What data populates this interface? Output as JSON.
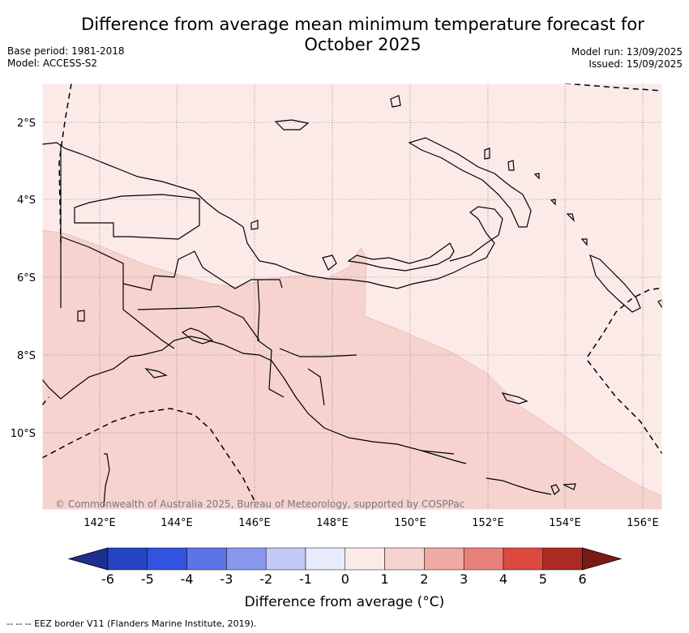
{
  "header": {
    "title_line1": "Difference from average mean minimum temperature forecast for",
    "title_line2": "October 2025",
    "base_period": "Base period: 1981-2018",
    "model": "Model: ACCESS-S2",
    "model_run": "Model run: 13/09/2025",
    "issued": "Issued: 15/09/2025"
  },
  "map": {
    "lon_ticks": [
      "142°E",
      "144°E",
      "146°E",
      "148°E",
      "150°E",
      "152°E",
      "154°E",
      "156°E"
    ],
    "lat_ticks": [
      "2°S",
      "4°S",
      "6°S",
      "8°S",
      "10°S"
    ],
    "copyright": "© Commonwealth of Australia 2025, Bureau of Meteorology, supported by COSPPac",
    "fill_colors": {
      "light": "#fbeae8",
      "medium": "#f6d3cf"
    }
  },
  "colorbar": {
    "ticks": [
      "-6",
      "-5",
      "-4",
      "-3",
      "-2",
      "-1",
      "0",
      "1",
      "2",
      "3",
      "4",
      "5",
      "6"
    ],
    "colors": [
      "#1e2f8f",
      "#2444c2",
      "#3253e0",
      "#5b74e6",
      "#8797ee",
      "#c2c9f5",
      "#e8ebfb",
      "#fbeae8",
      "#f6d3cf",
      "#efaaa3",
      "#e7817a",
      "#dc4a3f",
      "#ad2a22",
      "#7a1a17"
    ],
    "label": "Difference from average (°C)"
  },
  "footnote": "--  --  -- EEZ border V11 (Flanders Marine Institute, 2019)."
}
